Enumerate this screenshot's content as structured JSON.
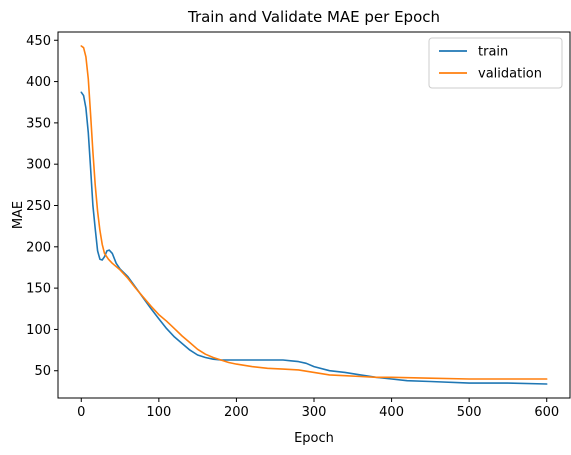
{
  "chart_data": {
    "type": "line",
    "title": "Train and Validate MAE per Epoch",
    "xlabel": "Epoch",
    "ylabel": "MAE",
    "xlim": [
      -30,
      630
    ],
    "ylim": [
      17,
      460
    ],
    "xticks": [
      0,
      100,
      200,
      300,
      400,
      500,
      600
    ],
    "yticks": [
      50,
      100,
      150,
      200,
      250,
      300,
      350,
      400,
      450
    ],
    "grid": false,
    "legend_position": "top-right",
    "series": [
      {
        "name": "train",
        "color": "#1f77b4",
        "x": [
          0,
          3,
          6,
          9,
          12,
          15,
          18,
          21,
          24,
          27,
          30,
          33,
          36,
          40,
          45,
          50,
          60,
          70,
          80,
          90,
          100,
          110,
          120,
          130,
          140,
          150,
          160,
          170,
          180,
          190,
          200,
          220,
          240,
          260,
          270,
          280,
          290,
          300,
          320,
          340,
          360,
          380,
          400,
          420,
          450,
          500,
          550,
          600
        ],
        "y": [
          387,
          383,
          368,
          338,
          295,
          250,
          222,
          195,
          185,
          184,
          188,
          195,
          196,
          192,
          180,
          173,
          164,
          151,
          138,
          125,
          113,
          101,
          91,
          83,
          75,
          69,
          66,
          64,
          63,
          63,
          63,
          63,
          63,
          63,
          62,
          61,
          59,
          55,
          50,
          48,
          45,
          42,
          40,
          38,
          37,
          35,
          35,
          34
        ]
      },
      {
        "name": "validation",
        "color": "#ff7f0e",
        "x": [
          0,
          3,
          6,
          9,
          12,
          15,
          18,
          21,
          24,
          27,
          30,
          35,
          40,
          50,
          60,
          70,
          80,
          90,
          100,
          110,
          120,
          130,
          140,
          150,
          160,
          170,
          180,
          190,
          200,
          220,
          240,
          260,
          280,
          300,
          320,
          340,
          360,
          380,
          400,
          450,
          500,
          550,
          600
        ],
        "y": [
          443,
          441,
          430,
          403,
          360,
          315,
          275,
          243,
          220,
          203,
          192,
          185,
          180,
          172,
          162,
          150,
          139,
          128,
          118,
          110,
          101,
          92,
          84,
          76,
          70,
          66,
          63,
          60,
          58,
          55,
          53,
          52,
          51,
          48,
          45,
          44,
          43,
          42,
          42,
          41,
          40,
          40,
          40
        ]
      }
    ]
  }
}
